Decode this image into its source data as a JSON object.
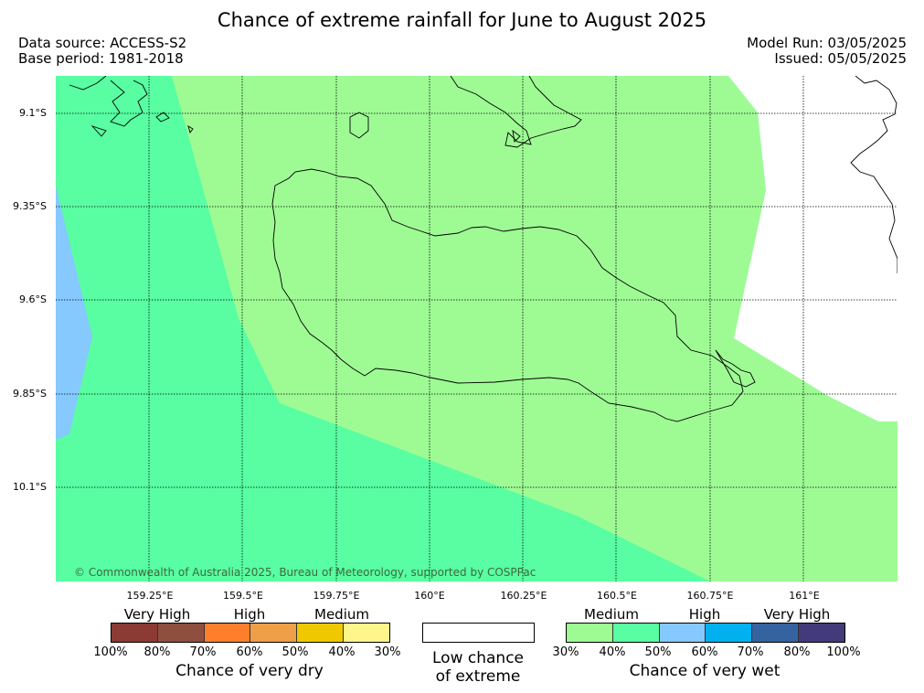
{
  "title": "Chance of extreme rainfall for June to August 2025",
  "meta": {
    "data_source": "Data source: ACCESS-S2",
    "base_period": "Base period: 1981-2018",
    "model_run": "Model Run: 03/05/2025",
    "issued": "Issued: 05/05/2025"
  },
  "map": {
    "lat_labels": [
      "9.1°S",
      "9.35°S",
      "9.6°S",
      "9.85°S",
      "10.1°S"
    ],
    "lon_labels": [
      "159.25°E",
      "159.5°E",
      "159.75°E",
      "160°E",
      "160.25°E",
      "160.5°E",
      "160.75°E",
      "161°E"
    ],
    "copyright": "© Commonwealth of Australia 2025, Bureau of Meteorology, supported by COSPPac",
    "colors": {
      "medium_wet": "#9efb94",
      "low_wet_40_50": "#58fea1",
      "high_wet_50_60": "#86c9ff",
      "land_line": "#000000"
    }
  },
  "legend": {
    "dry": {
      "categories": [
        "Very High",
        "High",
        "Medium"
      ],
      "colors": [
        "#8b3a35",
        "#8e4f3f",
        "#fd7f2c",
        "#ef9f48",
        "#f0c800",
        "#fef58b"
      ],
      "percent_labels": [
        "100%",
        "80%",
        "70%",
        "60%",
        "50%",
        "40%",
        "30%"
      ],
      "caption": "Chance of very dry"
    },
    "neutral": {
      "line1": "Low chance",
      "line2": "of extreme",
      "color": "#ffffff"
    },
    "wet": {
      "categories": [
        "Medium",
        "High",
        "Very High"
      ],
      "colors": [
        "#9efb94",
        "#58fea1",
        "#86c9ff",
        "#01b0ef",
        "#3563a0",
        "#433b79"
      ],
      "percent_labels": [
        "30%",
        "40%",
        "50%",
        "60%",
        "70%",
        "80%",
        "100%"
      ],
      "caption": "Chance of very wet"
    }
  }
}
